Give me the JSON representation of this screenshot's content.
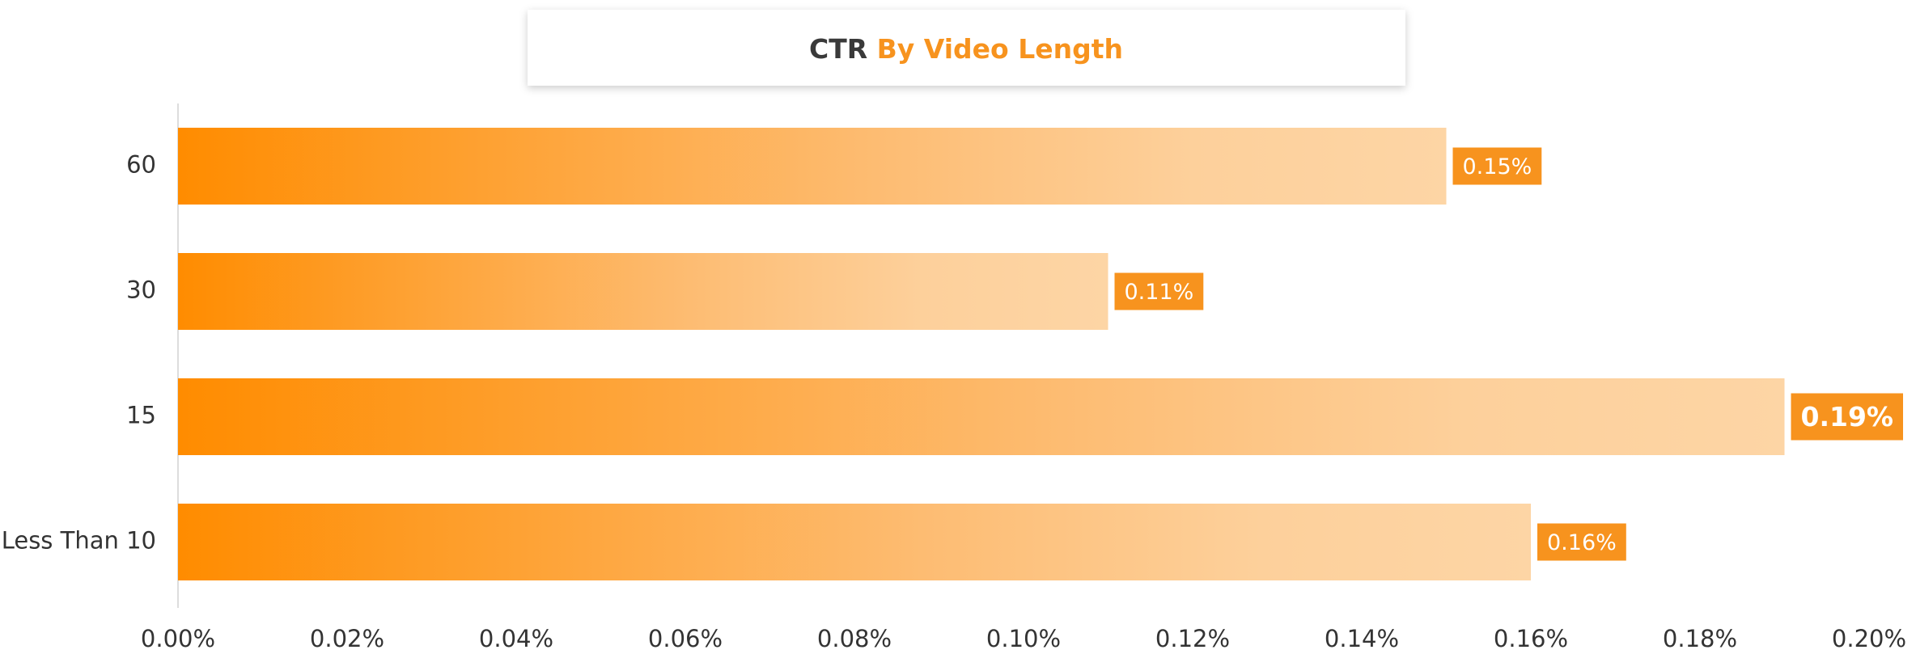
{
  "chart_data": {
    "type": "hbar",
    "title": [
      "CTR",
      "By Video Length"
    ],
    "categories": [
      "60",
      "30",
      "15",
      "Less Than 10"
    ],
    "values": [
      0.15,
      0.11,
      0.19,
      0.16
    ],
    "value_labels": [
      "0.15%",
      "0.11%",
      "0.19%",
      "0.16%"
    ],
    "color": "#ff8c00",
    "xlim": [
      0,
      0.2
    ],
    "xticks": [
      {
        "value": 0,
        "label": "0.00%"
      },
      {
        "value": 0.02,
        "label": "0.02%"
      },
      {
        "value": 0.04,
        "label": "0.04%"
      },
      {
        "value": 0.06,
        "label": "0.06%"
      },
      {
        "value": 0.08,
        "label": "0.08%"
      },
      {
        "value": 0.1,
        "label": "0.10%"
      },
      {
        "value": 0.12,
        "label": "0.12%"
      },
      {
        "value": 0.14,
        "label": "0.14%"
      },
      {
        "value": 0.16,
        "label": "0.16%"
      },
      {
        "value": 0.18,
        "label": "0.18%"
      },
      {
        "value": 0.2,
        "label": "0.20%"
      }
    ],
    "grid": false
  }
}
